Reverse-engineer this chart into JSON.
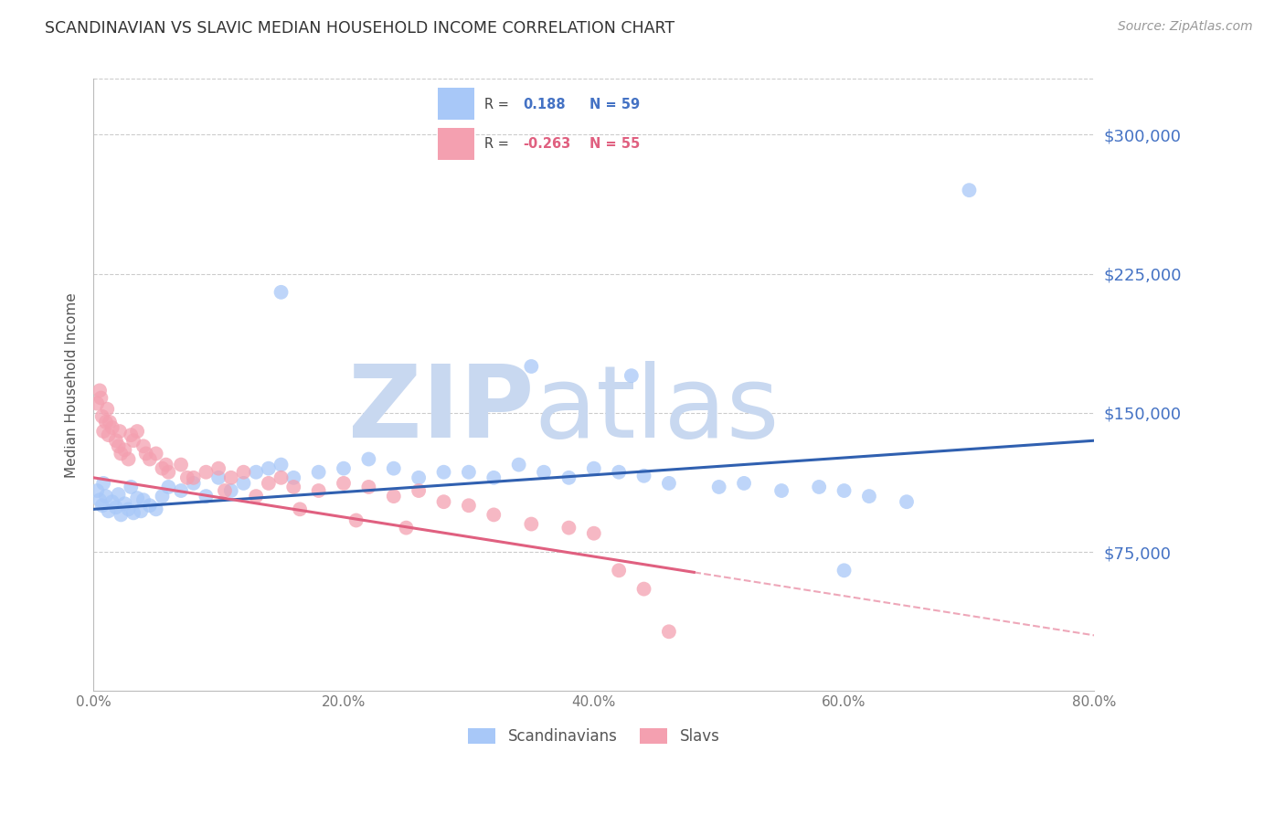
{
  "title": "SCANDINAVIAN VS SLAVIC MEDIAN HOUSEHOLD INCOME CORRELATION CHART",
  "source": "Source: ZipAtlas.com",
  "ylabel": "Median Household Income",
  "xlabel_ticks": [
    "0.0%",
    "20.0%",
    "40.0%",
    "60.0%",
    "80.0%"
  ],
  "xlabel_vals": [
    0,
    20,
    40,
    60,
    80
  ],
  "ytick_labels": [
    "$75,000",
    "$150,000",
    "$225,000",
    "$300,000"
  ],
  "ytick_vals": [
    75000,
    150000,
    225000,
    300000
  ],
  "ylim": [
    0,
    330000
  ],
  "xlim": [
    0,
    80
  ],
  "R_scand": 0.188,
  "N_scand": 59,
  "R_slav": -0.263,
  "N_slav": 55,
  "color_scand": "#A8C8F8",
  "color_slav": "#F4A0B0",
  "line_color_scand": "#3060B0",
  "line_color_slav": "#E06080",
  "watermark_zip_color": "#C8D8F0",
  "watermark_atlas_color": "#C8D8F0",
  "scand_line_x0": 0,
  "scand_line_y0": 98000,
  "scand_line_x1": 80,
  "scand_line_y1": 135000,
  "slav_line_x0": 0,
  "slav_line_y0": 115000,
  "slav_line_x1": 80,
  "slav_line_y1": 30000,
  "slav_solid_end": 48
}
